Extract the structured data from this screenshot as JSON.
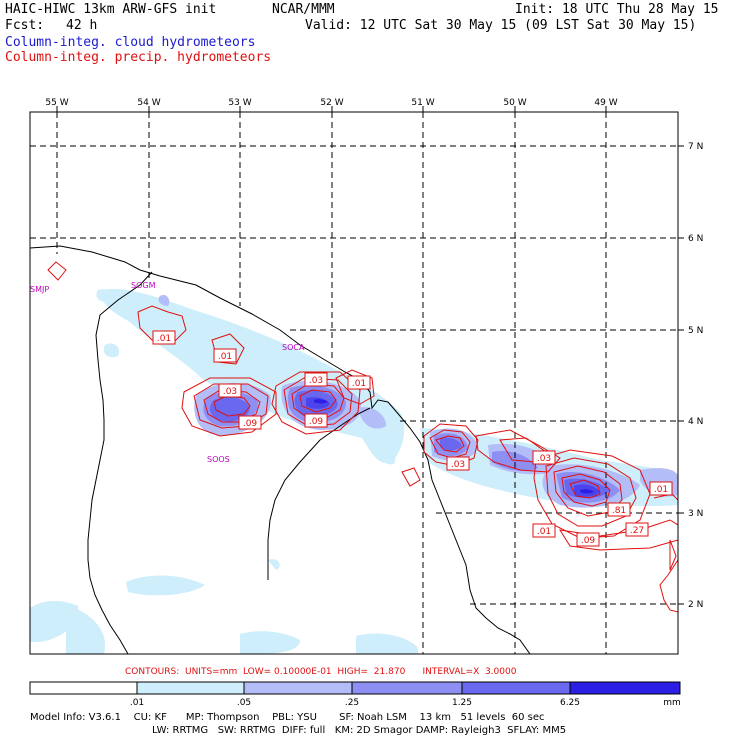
{
  "header": {
    "model_title": "HAIC-HIWC 13km ARW-GFS init",
    "org": "NCAR/MMM",
    "init": "Init: 18 UTC Thu 28 May 15",
    "fcst_label": "Fcst:",
    "fcst_value": "42 h",
    "valid": "Valid: 12 UTC Sat 30 May 15 (09 LST Sat 30 May 15)",
    "field1": "Column-integ. cloud hydrometeors",
    "field2": "Column-integ. precip. hydrometeors"
  },
  "colors": {
    "cloud_text": "#1a1ad0",
    "precip_text": "#e01010",
    "shade1": "#cdeefa",
    "shade2": "#b3bdf8",
    "shade3": "#8d8ff3",
    "shade4": "#6a68ee",
    "shade5": "#4a44ea",
    "shade6": "#2b1fe6"
  },
  "map": {
    "lon_labels": [
      "55 W",
      "54 W",
      "53 W",
      "52 W",
      "51 W",
      "50 W",
      "49 W"
    ],
    "lat_labels": [
      "7 N",
      "6 N",
      "5 N",
      "4 N",
      "3 N",
      "2 N"
    ],
    "stations": [
      "SMJP",
      "SOGM",
      "SOCA",
      "SOOS"
    ],
    "contour_labels": [
      ".01",
      ".01",
      ".03",
      ".03",
      ".01",
      ".09",
      ".09",
      ".03",
      ".03",
      ".01",
      ".81",
      ".27",
      ".09",
      ".01"
    ]
  },
  "footer": {
    "contours_line": "CONTOURS:  UNITS=mm  LOW= 0.10000E-01  HIGH=  21.870      INTERVAL=X  3.0000",
    "colorbar_ticks": [
      ".01",
      ".05",
      ".25",
      "1.25",
      "6.25"
    ],
    "colorbar_unit": "mm",
    "model_info_1": "Model Info: V3.6.1    CU: KF      MP: Thompson    PBL: YSU       SF: Noah LSM    13 km   51 levels  60 sec",
    "model_info_2": "LW: RRTMG   SW: RRTMG  DIFF: full   KM: 2D Smagor DAMP: Rayleigh3  SFLAY: MM5"
  }
}
